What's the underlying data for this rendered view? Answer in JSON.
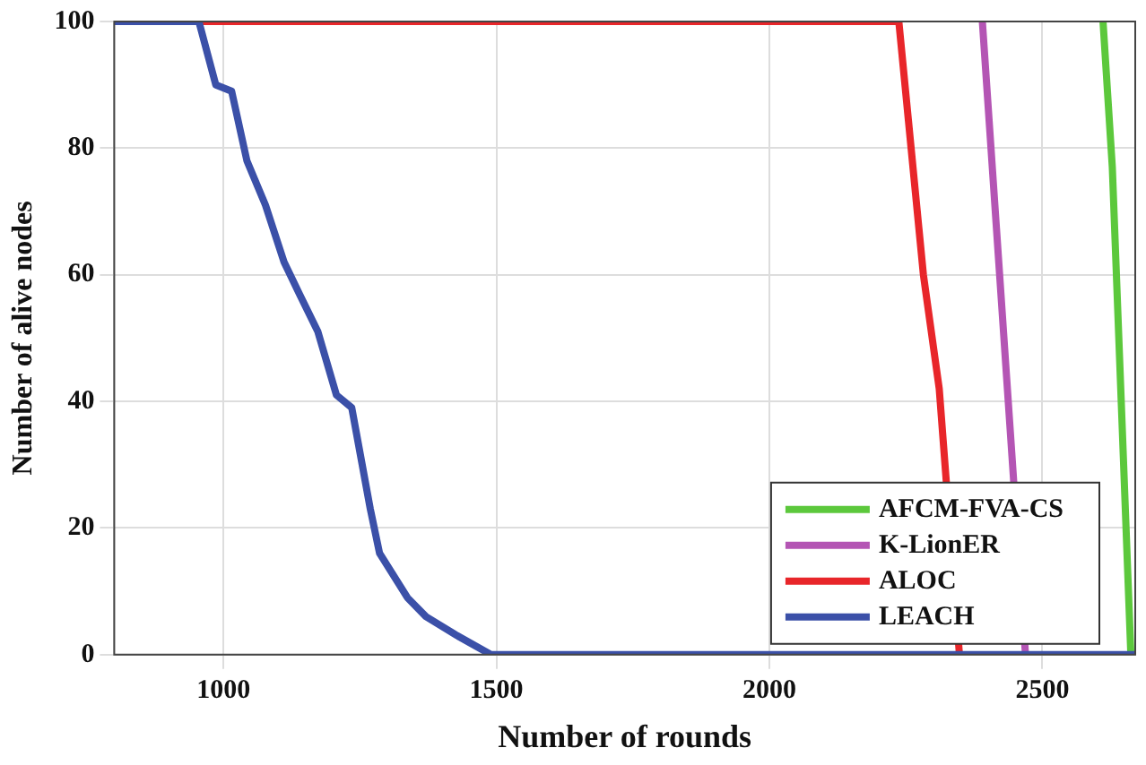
{
  "chart_data": {
    "type": "line",
    "xlabel": "Number of rounds",
    "ylabel": "Number of alive nodes",
    "xlim": [
      800,
      2670
    ],
    "xticks": [
      1000,
      1500,
      2000,
      2500
    ],
    "ylim": [
      0,
      100
    ],
    "yticks": [
      0,
      20,
      40,
      60,
      80,
      100
    ],
    "grid": true,
    "legend": "bottom right",
    "marker": "none",
    "line_style": "solid",
    "series": [
      {
        "name": "AFCM-FVA-CS",
        "color": "#5cc83c",
        "x": [
          2611,
          2628,
          2662
        ],
        "values": [
          100,
          77,
          0
        ]
      },
      {
        "name": "K-LionER",
        "color": "#b455b4",
        "x": [
          2390,
          2469
        ],
        "values": [
          100,
          0
        ]
      },
      {
        "name": "ALOC",
        "color": "#e8262a",
        "x": [
          800,
          2237,
          2282,
          2311,
          2348
        ],
        "values": [
          100,
          100,
          60,
          42,
          0
        ]
      },
      {
        "name": "LEACH",
        "color": "#3b50a8",
        "x": [
          800,
          955,
          986,
          1015,
          1043,
          1077,
          1111,
          1139,
          1173,
          1207,
          1235,
          1269,
          1286,
          1337,
          1371,
          1428,
          1490,
          2670
        ],
        "values": [
          100,
          100,
          90,
          89,
          78,
          71,
          62,
          57,
          51,
          41,
          39,
          23,
          16,
          9,
          6,
          3,
          0,
          0
        ]
      }
    ]
  }
}
